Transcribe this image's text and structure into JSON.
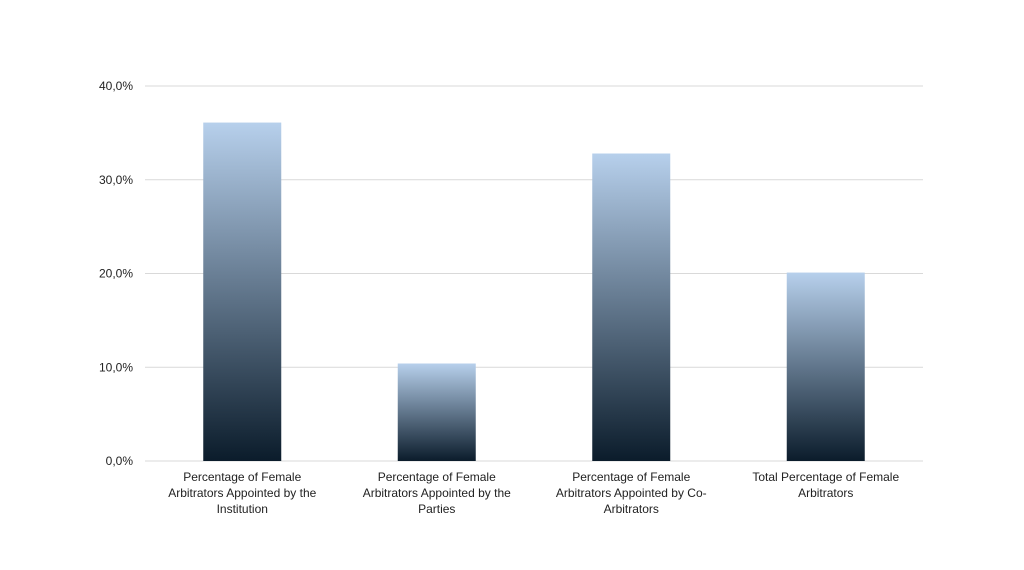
{
  "chart_data": {
    "type": "bar",
    "title": "",
    "xlabel": "",
    "ylabel": "",
    "ylim": [
      0,
      40
    ],
    "yticks": [
      "0,0%",
      "10,0%",
      "20,0%",
      "30,0%",
      "40,0%"
    ],
    "grid": true,
    "categories": [
      [
        "Percentage of Female",
        "Arbitrators Appointed by the",
        "Institution"
      ],
      [
        "Percentage of Female",
        "Arbitrators Appointed by the",
        "Parties"
      ],
      [
        "Percentage of Female",
        "Arbitrators Appointed by Co-",
        "Arbitrators"
      ],
      [
        "Total Percentage of Female",
        "Arbitrators"
      ]
    ],
    "values": [
      36.1,
      10.4,
      32.8,
      20.1
    ],
    "bar_gradient": {
      "top": "#b7d0ec",
      "bottom": "#0b1c2b"
    },
    "gridline_color": "#d9d9d9"
  }
}
